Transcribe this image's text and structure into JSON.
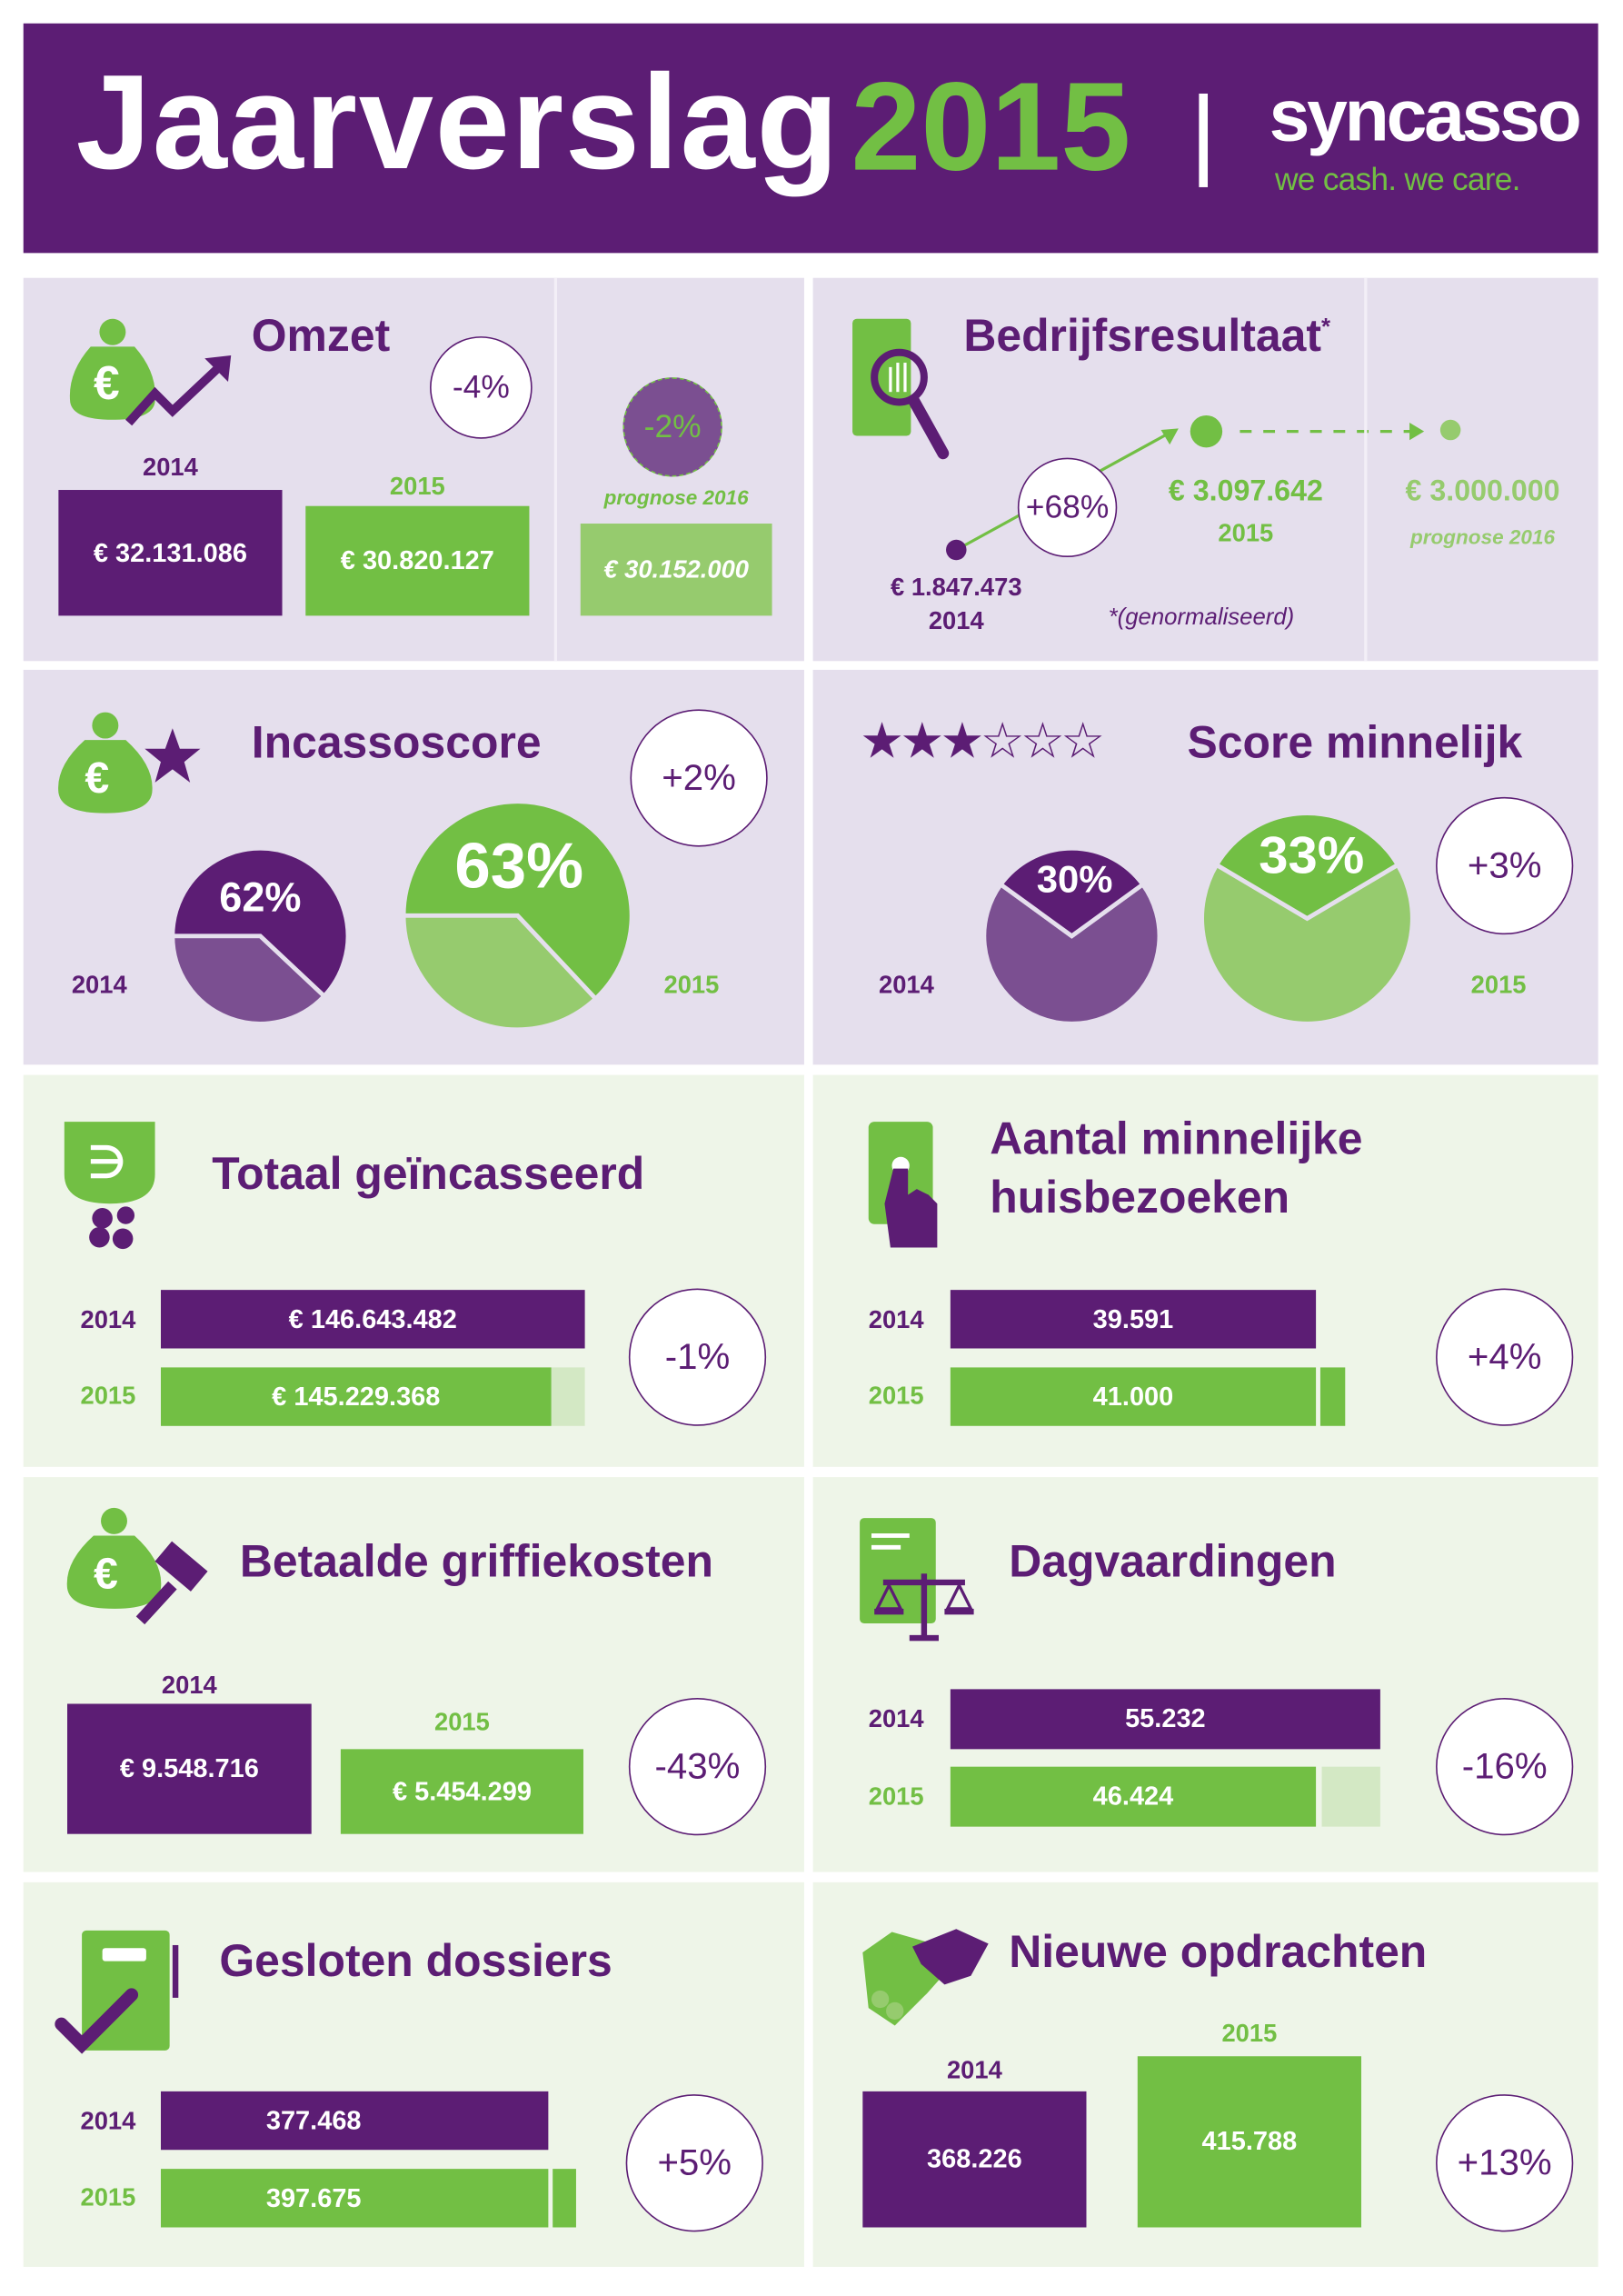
{
  "header": {
    "title": "Jaarverslag",
    "year": "2015",
    "logo": "syncasso",
    "tagline": "we cash. we care."
  },
  "colors": {
    "purple": "#5c1d74",
    "purple_light": "#7b4f91",
    "green": "#72bf44",
    "green_light": "#96cb6e",
    "lavender_bg": "#e5dfed",
    "green_bg": "#eef5e8"
  },
  "omzet": {
    "title": "Omzet",
    "change": "-4%",
    "year_2014": "2014",
    "value_2014": "€ 32.131.086",
    "year_2015": "2015",
    "value_2015": "€ 30.820.127",
    "forecast_change": "-2%",
    "forecast_label": "prognose 2016",
    "forecast_value": "€ 30.152.000"
  },
  "bedrijfsresultaat": {
    "title": "Bedrijfsresultaat",
    "asterisk": "*",
    "change": "+68%",
    "value_2014": "€ 1.847.473",
    "year_2014": "2014",
    "value_2015": "€ 3.097.642",
    "year_2015": "2015",
    "forecast_value": "€ 3.000.000",
    "forecast_label": "prognose 2016",
    "footnote": "*(genormaliseerd)"
  },
  "incassoscore": {
    "title": "Incassoscore",
    "change": "+2%",
    "year_2014": "2014",
    "pct_2014": 62,
    "label_2014": "62%",
    "year_2015": "2015",
    "pct_2015": 63,
    "label_2015": "63%"
  },
  "score_minnelijk": {
    "title": "Score minnelijk",
    "stars_filled": 3,
    "stars_total": 6,
    "change": "+3%",
    "year_2014": "2014",
    "pct_2014": 30,
    "label_2014": "30%",
    "year_2015": "2015",
    "pct_2015": 33,
    "label_2015": "33%"
  },
  "totaal_geincasseerd": {
    "title": "Totaal geïncasseerd",
    "change": "-1%",
    "year_2014": "2014",
    "value_2014": "€ 146.643.482",
    "year_2015": "2015",
    "value_2015": "€ 145.229.368"
  },
  "huisbezoeken": {
    "title_line1": "Aantal minnelijke",
    "title_line2": "huisbezoeken",
    "change": "+4%",
    "year_2014": "2014",
    "value_2014": "39.591",
    "year_2015": "2015",
    "value_2015": "41.000"
  },
  "griffiekosten": {
    "title": "Betaalde griffiekosten",
    "change": "-43%",
    "year_2014": "2014",
    "value_2014": "€ 9.548.716",
    "year_2015": "2015",
    "value_2015": "€ 5.454.299"
  },
  "dagvaardingen": {
    "title": "Dagvaardingen",
    "change": "-16%",
    "year_2014": "2014",
    "value_2014": "55.232",
    "year_2015": "2015",
    "value_2015": "46.424"
  },
  "gesloten_dossiers": {
    "title": "Gesloten dossiers",
    "change": "+5%",
    "year_2014": "2014",
    "value_2014": "377.468",
    "year_2015": "2015",
    "value_2015": "397.675"
  },
  "nieuwe_opdrachten": {
    "title": "Nieuwe opdrachten",
    "change": "+13%",
    "year_2014": "2014",
    "value_2014": "368.226",
    "year_2015": "2015",
    "value_2015": "415.788"
  }
}
